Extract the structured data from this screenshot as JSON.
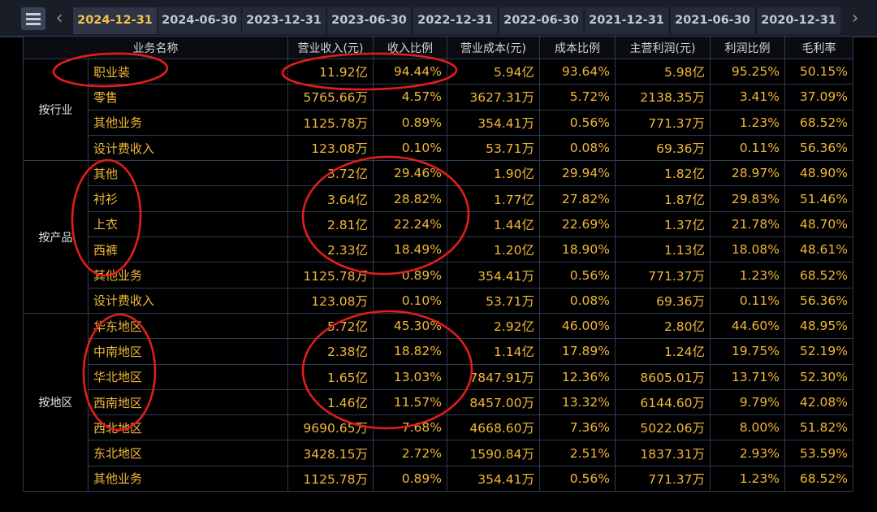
{
  "tabs": {
    "prev_icon": "chevron-left-icon",
    "next_icon": "chevron-right-icon",
    "menu_icon": "hamburger-menu-icon",
    "items": [
      "2024-12-31",
      "2024-06-30",
      "2023-12-31",
      "2023-06-30",
      "2022-12-31",
      "2022-06-30",
      "2021-12-31",
      "2021-06-30",
      "2020-12-31"
    ],
    "active": "2024-12-31"
  },
  "table": {
    "headers": [
      "业务名称",
      "营业收入(元)",
      "收入比例",
      "营业成本(元)",
      "成本比例",
      "主营利润(元)",
      "利润比例",
      "毛利率"
    ],
    "groups": [
      {
        "label": "按行业",
        "rows": [
          [
            "职业装",
            "11.92亿",
            "94.44%",
            "5.94亿",
            "93.64%",
            "5.98亿",
            "95.25%",
            "50.15%"
          ],
          [
            "零售",
            "5765.66万",
            "4.57%",
            "3627.31万",
            "5.72%",
            "2138.35万",
            "3.41%",
            "37.09%"
          ],
          [
            "其他业务",
            "1125.78万",
            "0.89%",
            "354.41万",
            "0.56%",
            "771.37万",
            "1.23%",
            "68.52%"
          ],
          [
            "设计费收入",
            "123.08万",
            "0.10%",
            "53.71万",
            "0.08%",
            "69.36万",
            "0.11%",
            "56.36%"
          ]
        ]
      },
      {
        "label": "按产品",
        "rows": [
          [
            "其他",
            "3.72亿",
            "29.46%",
            "1.90亿",
            "29.94%",
            "1.82亿",
            "28.97%",
            "48.90%"
          ],
          [
            "衬衫",
            "3.64亿",
            "28.82%",
            "1.77亿",
            "27.82%",
            "1.87亿",
            "29.83%",
            "51.46%"
          ],
          [
            "上衣",
            "2.81亿",
            "22.24%",
            "1.44亿",
            "22.69%",
            "1.37亿",
            "21.78%",
            "48.70%"
          ],
          [
            "西裤",
            "2.33亿",
            "18.49%",
            "1.20亿",
            "18.90%",
            "1.13亿",
            "18.08%",
            "48.61%"
          ],
          [
            "其他业务",
            "1125.78万",
            "0.89%",
            "354.41万",
            "0.56%",
            "771.37万",
            "1.23%",
            "68.52%"
          ],
          [
            "设计费收入",
            "123.08万",
            "0.10%",
            "53.71万",
            "0.08%",
            "69.36万",
            "0.11%",
            "56.36%"
          ]
        ]
      },
      {
        "label": "按地区",
        "rows": [
          [
            "华东地区",
            "5.72亿",
            "45.30%",
            "2.92亿",
            "46.00%",
            "2.80亿",
            "44.60%",
            "48.95%"
          ],
          [
            "中南地区",
            "2.38亿",
            "18.82%",
            "1.14亿",
            "17.89%",
            "1.24亿",
            "19.75%",
            "52.19%"
          ],
          [
            "华北地区",
            "1.65亿",
            "13.03%",
            "7847.91万",
            "12.36%",
            "8605.01万",
            "13.71%",
            "52.30%"
          ],
          [
            "西南地区",
            "1.46亿",
            "11.57%",
            "8457.00万",
            "13.32%",
            "6144.60万",
            "9.79%",
            "42.08%"
          ],
          [
            "西北地区",
            "9690.65万",
            "7.68%",
            "4668.60万",
            "7.36%",
            "5022.06万",
            "8.00%",
            "51.82%"
          ],
          [
            "东北地区",
            "3428.15万",
            "2.72%",
            "1590.84万",
            "2.51%",
            "1837.31万",
            "2.93%",
            "53.59%"
          ],
          [
            "其他业务",
            "1125.78万",
            "0.89%",
            "354.41万",
            "0.56%",
            "771.37万",
            "1.23%",
            "68.52%"
          ]
        ]
      }
    ]
  },
  "colors": {
    "value_text": "#f0b739",
    "active_tab_text": "#f4c247",
    "annotation_red": "#e21d1d",
    "background": "#000000"
  }
}
